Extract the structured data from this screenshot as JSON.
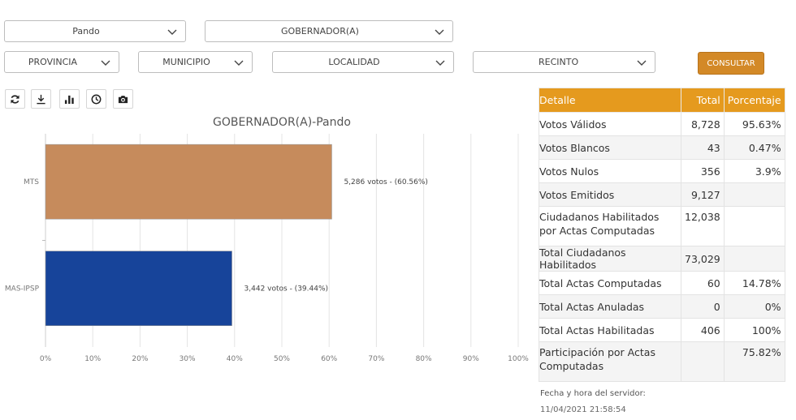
{
  "filters": {
    "departamento": "Pando",
    "cargo": "GOBERNADOR(A)",
    "provincia": "PROVINCIA",
    "municipio": "MUNICIPIO",
    "localidad": "LOCALIDAD",
    "recinto": "RECINTO",
    "consultar": "CONSULTAR"
  },
  "toolbar": [
    "refresh-icon",
    "download-icon",
    "bar-chart-icon",
    "clock-icon",
    "camera-icon"
  ],
  "chart_data": {
    "type": "bar",
    "orientation": "horizontal",
    "title": "GOBERNADOR(A)-Pando",
    "categories": [
      "MTS",
      "MAS-IPSP"
    ],
    "values": [
      60.56,
      39.44
    ],
    "data_labels": [
      "5,286 votos - (60.56%)",
      "3,442 votos - (39.44%)"
    ],
    "colors": [
      "#c68b5c",
      "#17449a"
    ],
    "xlim": [
      0,
      100
    ],
    "x_ticks": [
      "0%",
      "10%",
      "20%",
      "30%",
      "40%",
      "50%",
      "60%",
      "70%",
      "80%",
      "90%",
      "100%"
    ],
    "grid": true
  },
  "detalle": {
    "headers": [
      "Detalle",
      "Total",
      "Porcentaje"
    ],
    "rows": [
      {
        "label": "Votos Válidos",
        "total": "8,728",
        "pct": "95.63%"
      },
      {
        "label": "Votos Blancos",
        "total": "43",
        "pct": "0.47%"
      },
      {
        "label": "Votos Nulos",
        "total": "356",
        "pct": "3.9%"
      },
      {
        "label": "Votos Emitidos",
        "total": "9,127",
        "pct": ""
      },
      {
        "label": "Ciudadanos Habilitados por Actas Computadas",
        "total": "12,038",
        "pct": ""
      },
      {
        "label": "Total Ciudadanos Habilitados",
        "total": "73,029",
        "pct": ""
      },
      {
        "label": "Total Actas Computadas",
        "total": "60",
        "pct": "14.78%"
      },
      {
        "label": "Total Actas Anuladas",
        "total": "0",
        "pct": "0%"
      },
      {
        "label": "Total Actas Habilitadas",
        "total": "406",
        "pct": "100%"
      },
      {
        "label": "Participación por Actas Computadas",
        "total": "",
        "pct": "75.82%"
      }
    ]
  },
  "server": {
    "label": "Fecha y hora del servidor:",
    "datetime": "11/04/2021 21:58:54"
  }
}
